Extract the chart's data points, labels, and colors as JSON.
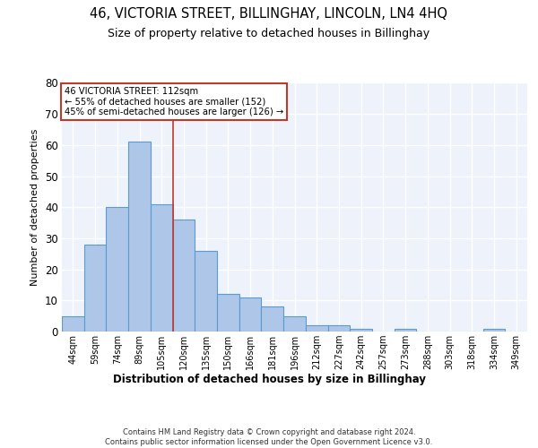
{
  "title": "46, VICTORIA STREET, BILLINGHAY, LINCOLN, LN4 4HQ",
  "subtitle": "Size of property relative to detached houses in Billinghay",
  "xlabel": "Distribution of detached houses by size in Billinghay",
  "ylabel": "Number of detached properties",
  "bar_categories": [
    "44sqm",
    "59sqm",
    "74sqm",
    "89sqm",
    "105sqm",
    "120sqm",
    "135sqm",
    "150sqm",
    "166sqm",
    "181sqm",
    "196sqm",
    "212sqm",
    "227sqm",
    "242sqm",
    "257sqm",
    "273sqm",
    "288sqm",
    "303sqm",
    "318sqm",
    "334sqm",
    "349sqm"
  ],
  "bar_values": [
    5,
    28,
    40,
    61,
    41,
    36,
    26,
    12,
    11,
    8,
    5,
    2,
    2,
    1,
    0,
    1,
    0,
    0,
    0,
    1,
    0
  ],
  "bar_color": "#aec6e8",
  "bar_edge_color": "#5b9bd5",
  "background_color": "#eef3fb",
  "grid_color": "#ffffff",
  "vline_x": 4.5,
  "vline_color": "#c0392b",
  "annotation_text": "46 VICTORIA STREET: 112sqm\n← 55% of detached houses are smaller (152)\n45% of semi-detached houses are larger (126) →",
  "annotation_box_color": "#ffffff",
  "annotation_box_edge_color": "#c0392b",
  "ylim": [
    0,
    80
  ],
  "yticks": [
    0,
    10,
    20,
    30,
    40,
    50,
    60,
    70,
    80
  ],
  "footer_line1": "Contains HM Land Registry data © Crown copyright and database right 2024.",
  "footer_line2": "Contains public sector information licensed under the Open Government Licence v3.0."
}
